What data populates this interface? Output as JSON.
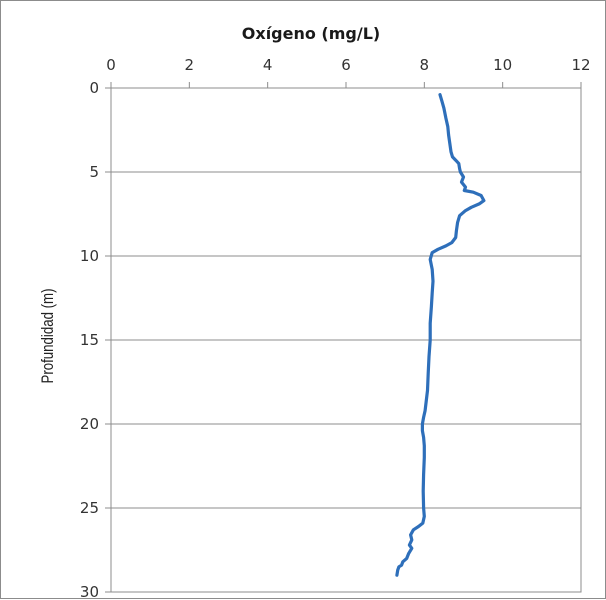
{
  "chart_data": {
    "type": "line",
    "title": "",
    "xlabel": "Oxígeno (mg/L)",
    "ylabel": "Profundidad (m)",
    "x_axis_position": "top",
    "y_axis_inverted": true,
    "xlim": [
      0,
      12
    ],
    "ylim": [
      0,
      30
    ],
    "x_ticks": [
      0,
      2,
      4,
      6,
      8,
      10,
      12
    ],
    "y_ticks": [
      0,
      5,
      10,
      15,
      20,
      25,
      30
    ],
    "grid": "horizontal",
    "legend": "none",
    "series_color": "#2e6fba",
    "series": [
      {
        "points": [
          [
            8.4,
            0.4
          ],
          [
            8.45,
            0.8
          ],
          [
            8.5,
            1.2
          ],
          [
            8.55,
            1.8
          ],
          [
            8.6,
            2.3
          ],
          [
            8.62,
            2.8
          ],
          [
            8.65,
            3.3
          ],
          [
            8.68,
            3.8
          ],
          [
            8.72,
            4.1
          ],
          [
            8.8,
            4.3
          ],
          [
            8.88,
            4.5
          ],
          [
            8.9,
            4.8
          ],
          [
            8.92,
            5.0
          ],
          [
            9.0,
            5.3
          ],
          [
            8.95,
            5.6
          ],
          [
            9.05,
            5.9
          ],
          [
            9.02,
            6.1
          ],
          [
            9.25,
            6.2
          ],
          [
            9.45,
            6.4
          ],
          [
            9.52,
            6.7
          ],
          [
            9.4,
            6.9
          ],
          [
            9.2,
            7.1
          ],
          [
            9.05,
            7.3
          ],
          [
            8.9,
            7.6
          ],
          [
            8.85,
            8.0
          ],
          [
            8.82,
            8.5
          ],
          [
            8.8,
            8.9
          ],
          [
            8.7,
            9.2
          ],
          [
            8.55,
            9.4
          ],
          [
            8.35,
            9.6
          ],
          [
            8.2,
            9.8
          ],
          [
            8.15,
            10.2
          ],
          [
            8.2,
            10.8
          ],
          [
            8.22,
            11.5
          ],
          [
            8.2,
            12.2
          ],
          [
            8.18,
            13.0
          ],
          [
            8.15,
            14.0
          ],
          [
            8.15,
            15.0
          ],
          [
            8.12,
            16.0
          ],
          [
            8.1,
            17.0
          ],
          [
            8.08,
            18.0
          ],
          [
            8.05,
            18.6
          ],
          [
            8.02,
            19.2
          ],
          [
            7.98,
            19.6
          ],
          [
            7.95,
            20.0
          ],
          [
            7.95,
            20.4
          ],
          [
            7.98,
            20.8
          ],
          [
            8.0,
            21.3
          ],
          [
            8.0,
            22.0
          ],
          [
            7.98,
            23.0
          ],
          [
            7.97,
            24.0
          ],
          [
            7.98,
            25.0
          ],
          [
            8.0,
            25.5
          ],
          [
            7.96,
            25.9
          ],
          [
            7.85,
            26.1
          ],
          [
            7.72,
            26.3
          ],
          [
            7.65,
            26.6
          ],
          [
            7.68,
            26.9
          ],
          [
            7.62,
            27.2
          ],
          [
            7.68,
            27.4
          ],
          [
            7.6,
            27.7
          ],
          [
            7.55,
            28.0
          ],
          [
            7.45,
            28.2
          ],
          [
            7.42,
            28.4
          ],
          [
            7.35,
            28.5
          ],
          [
            7.32,
            28.7
          ],
          [
            7.3,
            29.0
          ]
        ]
      }
    ]
  }
}
